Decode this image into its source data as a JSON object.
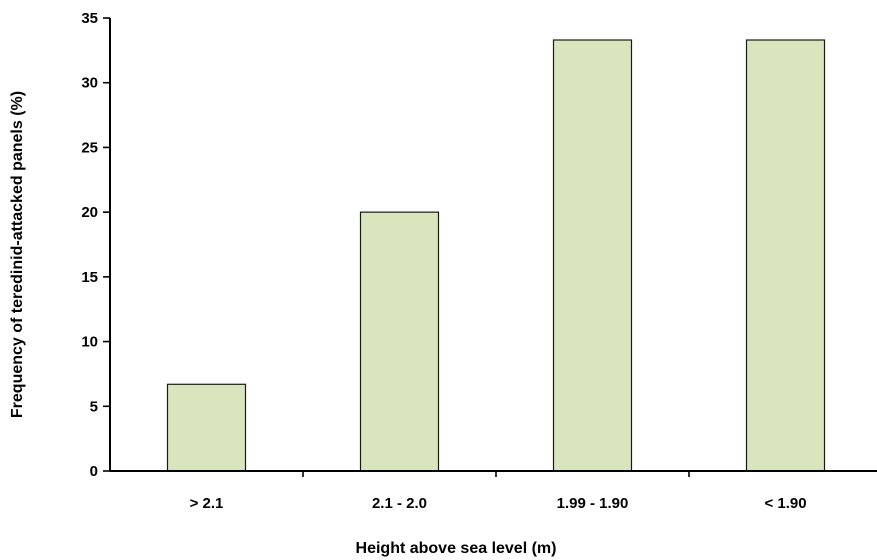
{
  "chart_data": {
    "type": "bar",
    "categories": [
      "> 2.1",
      "2.1 - 2.0",
      "1.99 - 1.90",
      "< 1.90"
    ],
    "values": [
      6.7,
      20.0,
      33.3,
      33.3
    ],
    "xlabel": "Height above sea level (m)",
    "ylabel": "Frequency of teredinid-attacked panels (%)",
    "ylim": [
      0,
      35
    ],
    "yticks": [
      "0",
      "5",
      "10",
      "15",
      "20",
      "25",
      "30",
      "35"
    ],
    "grid": false,
    "legend": "none",
    "colors": {
      "bar_fill": "#d9e6bd",
      "bar_stroke": "#1a1a1a"
    }
  }
}
